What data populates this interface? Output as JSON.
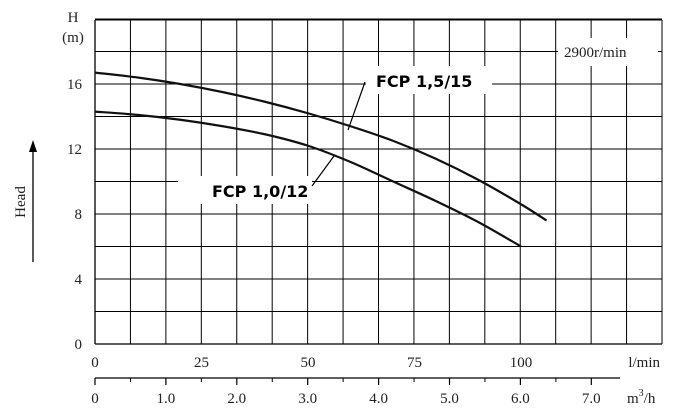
{
  "chart_data": {
    "type": "line",
    "speed_label": "2900r/min",
    "ylabel_unit_letter": "H",
    "ylabel_unit_paren": "(m)",
    "ylabel_side": "Head",
    "x_primary_unit": "l/min",
    "x_secondary_unit_base": "m",
    "x_secondary_unit_exp": "3",
    "x_secondary_unit_suffix": "/h",
    "y_ticks": [
      "0",
      "4",
      "8",
      "12",
      "16"
    ],
    "x_primary_ticks": [
      "0",
      "25",
      "50",
      "75",
      "100"
    ],
    "x_secondary_ticks": [
      "0",
      "1.0",
      "2.0",
      "3.0",
      "4.0",
      "5.0",
      "6.0",
      "7.0"
    ],
    "xlim": [
      0,
      106
    ],
    "ylim": [
      0,
      18
    ],
    "series": [
      {
        "name": "FCP 1,5/15",
        "x": [
          0,
          10,
          20,
          30,
          40,
          50,
          60,
          70,
          80,
          90,
          100,
          106
        ],
        "y": [
          16.7,
          16.4,
          16.0,
          15.5,
          14.9,
          14.2,
          13.4,
          12.5,
          11.4,
          10.1,
          8.6,
          7.6
        ]
      },
      {
        "name": "FCP 1,0/12",
        "x": [
          0,
          10,
          20,
          30,
          40,
          50,
          60,
          70,
          80,
          90,
          100
        ],
        "y": [
          14.3,
          14.1,
          13.8,
          13.4,
          12.9,
          12.2,
          11.2,
          10.0,
          8.8,
          7.5,
          6.0
        ]
      }
    ]
  }
}
